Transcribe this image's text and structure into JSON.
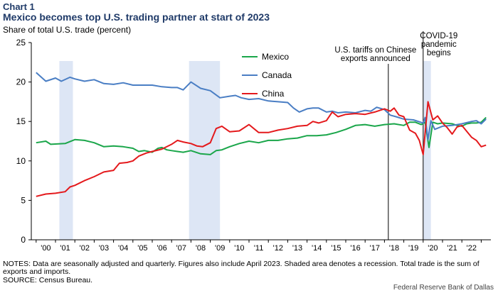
{
  "header": {
    "label": "Chart 1",
    "title": "Mexico becomes top U.S. trading partner at start of 2023"
  },
  "footer": {
    "notes": "NOTES: Data are seasonally adjusted and quarterly. Figures also include April 2023. Shaded area denotes a recession. Total trade is the sum of exports and imports.",
    "source": "SOURCE: Census Bureau.",
    "credit": "Federal Reserve Bank of Dallas"
  },
  "chart_data": {
    "type": "line",
    "title": "Mexico becomes top U.S. trading partner at start of 2023",
    "ylabel": "Share of total U.S. trade (percent)",
    "xlabel": "",
    "ylim": [
      0,
      25
    ],
    "yticks": [
      0,
      5,
      10,
      15,
      20,
      25
    ],
    "xlim": [
      1999.75,
      2023.5
    ],
    "xticks": [
      {
        "x": 2000.5,
        "label": "'00"
      },
      {
        "x": 2001.5,
        "label": "'01"
      },
      {
        "x": 2002.5,
        "label": "'02"
      },
      {
        "x": 2003.5,
        "label": "'03"
      },
      {
        "x": 2004.5,
        "label": "'04"
      },
      {
        "x": 2005.5,
        "label": "'05"
      },
      {
        "x": 2006.5,
        "label": "'06"
      },
      {
        "x": 2007.5,
        "label": "'07"
      },
      {
        "x": 2008.5,
        "label": "'08"
      },
      {
        "x": 2009.5,
        "label": "'09"
      },
      {
        "x": 2010.5,
        "label": "'10"
      },
      {
        "x": 2011.5,
        "label": "'11"
      },
      {
        "x": 2012.5,
        "label": "'12"
      },
      {
        "x": 2013.5,
        "label": "'13"
      },
      {
        "x": 2014.5,
        "label": "'14"
      },
      {
        "x": 2015.5,
        "label": "'15"
      },
      {
        "x": 2016.5,
        "label": "'16"
      },
      {
        "x": 2017.5,
        "label": "'17"
      },
      {
        "x": 2018.5,
        "label": "'18"
      },
      {
        "x": 2019.5,
        "label": "'19"
      },
      {
        "x": 2020.5,
        "label": "'20"
      },
      {
        "x": 2021.5,
        "label": "'21"
      },
      {
        "x": 2022.5,
        "label": "'22"
      }
    ],
    "grid": false,
    "legend": "top-middle",
    "recessions": [
      [
        2001.2,
        2001.9
      ],
      [
        2007.9,
        2009.5
      ],
      [
        2020.0,
        2020.4
      ]
    ],
    "annotations": [
      {
        "x": 2018.2,
        "text": [
          "U.S. tariffs on Chinese",
          "exports announced"
        ]
      },
      {
        "x": 2020.0,
        "text": [
          "COVID-19",
          "pandemic",
          "begins"
        ]
      }
    ],
    "series": [
      {
        "name": "Mexico",
        "color": "#1aa64a",
        "points": [
          [
            2000.0,
            12.3
          ],
          [
            2000.5,
            12.5
          ],
          [
            2000.75,
            12.1
          ],
          [
            2001.5,
            12.2
          ],
          [
            2002.0,
            12.7
          ],
          [
            2002.5,
            12.6
          ],
          [
            2003.0,
            12.3
          ],
          [
            2003.5,
            11.8
          ],
          [
            2004.0,
            11.9
          ],
          [
            2004.5,
            11.8
          ],
          [
            2005.0,
            11.6
          ],
          [
            2005.3,
            11.2
          ],
          [
            2005.6,
            11.3
          ],
          [
            2006.0,
            11.1
          ],
          [
            2006.3,
            11.6
          ],
          [
            2006.5,
            11.7
          ],
          [
            2006.75,
            11.4
          ],
          [
            2007.0,
            11.3
          ],
          [
            2007.3,
            11.2
          ],
          [
            2007.6,
            11.1
          ],
          [
            2008.0,
            11.3
          ],
          [
            2008.5,
            10.9
          ],
          [
            2009.0,
            10.8
          ],
          [
            2009.3,
            11.3
          ],
          [
            2009.6,
            11.4
          ],
          [
            2010.0,
            11.8
          ],
          [
            2010.5,
            12.2
          ],
          [
            2011.0,
            12.5
          ],
          [
            2011.5,
            12.3
          ],
          [
            2012.0,
            12.6
          ],
          [
            2012.5,
            12.6
          ],
          [
            2013.0,
            12.8
          ],
          [
            2013.5,
            12.9
          ],
          [
            2014.0,
            13.2
          ],
          [
            2014.5,
            13.2
          ],
          [
            2015.0,
            13.3
          ],
          [
            2015.5,
            13.6
          ],
          [
            2016.0,
            14.0
          ],
          [
            2016.5,
            14.5
          ],
          [
            2017.0,
            14.6
          ],
          [
            2017.5,
            14.4
          ],
          [
            2018.0,
            14.6
          ],
          [
            2018.5,
            14.7
          ],
          [
            2019.0,
            14.5
          ],
          [
            2019.3,
            14.9
          ],
          [
            2019.6,
            14.9
          ],
          [
            2019.9,
            14.6
          ],
          [
            2020.1,
            14.9
          ],
          [
            2020.3,
            11.7
          ],
          [
            2020.5,
            14.9
          ],
          [
            2020.75,
            14.7
          ],
          [
            2021.0,
            14.8
          ],
          [
            2021.5,
            14.7
          ],
          [
            2021.75,
            14.5
          ],
          [
            2022.0,
            14.4
          ],
          [
            2022.25,
            14.7
          ],
          [
            2022.5,
            14.8
          ],
          [
            2022.75,
            14.8
          ],
          [
            2023.0,
            14.9
          ],
          [
            2023.25,
            15.5
          ]
        ]
      },
      {
        "name": "Canada",
        "color": "#4a7ec4",
        "points": [
          [
            2000.0,
            21.2
          ],
          [
            2000.5,
            20.1
          ],
          [
            2001.0,
            20.5
          ],
          [
            2001.3,
            20.1
          ],
          [
            2001.75,
            20.6
          ],
          [
            2002.0,
            20.4
          ],
          [
            2002.5,
            20.1
          ],
          [
            2003.0,
            20.3
          ],
          [
            2003.5,
            19.8
          ],
          [
            2004.0,
            19.7
          ],
          [
            2004.5,
            19.9
          ],
          [
            2005.0,
            19.6
          ],
          [
            2005.5,
            19.6
          ],
          [
            2006.0,
            19.6
          ],
          [
            2006.5,
            19.4
          ],
          [
            2007.0,
            19.3
          ],
          [
            2007.3,
            19.3
          ],
          [
            2007.6,
            19.0
          ],
          [
            2008.0,
            20.0
          ],
          [
            2008.5,
            19.2
          ],
          [
            2009.0,
            18.9
          ],
          [
            2009.5,
            18.0
          ],
          [
            2010.0,
            18.2
          ],
          [
            2010.3,
            18.3
          ],
          [
            2010.6,
            18.0
          ],
          [
            2011.0,
            17.8
          ],
          [
            2011.5,
            17.9
          ],
          [
            2012.0,
            17.6
          ],
          [
            2012.5,
            17.5
          ],
          [
            2013.0,
            17.4
          ],
          [
            2013.3,
            16.7
          ],
          [
            2013.6,
            16.2
          ],
          [
            2014.0,
            16.6
          ],
          [
            2014.3,
            16.7
          ],
          [
            2014.6,
            16.7
          ],
          [
            2015.0,
            16.2
          ],
          [
            2015.3,
            16.3
          ],
          [
            2015.6,
            16.1
          ],
          [
            2016.0,
            16.2
          ],
          [
            2016.5,
            16.1
          ],
          [
            2017.0,
            16.4
          ],
          [
            2017.3,
            16.3
          ],
          [
            2017.6,
            16.8
          ],
          [
            2018.0,
            16.5
          ],
          [
            2018.3,
            15.8
          ],
          [
            2018.6,
            15.6
          ],
          [
            2019.0,
            15.3
          ],
          [
            2019.5,
            15.2
          ],
          [
            2020.0,
            14.8
          ],
          [
            2020.1,
            15.5
          ],
          [
            2020.25,
            12.7
          ],
          [
            2020.4,
            15.1
          ],
          [
            2020.6,
            14.0
          ],
          [
            2021.0,
            14.4
          ],
          [
            2021.5,
            14.5
          ],
          [
            2022.0,
            14.7
          ],
          [
            2022.5,
            15.0
          ],
          [
            2022.75,
            15.1
          ],
          [
            2023.0,
            14.7
          ],
          [
            2023.25,
            15.3
          ]
        ]
      },
      {
        "name": "China",
        "color": "#e4191c",
        "points": [
          [
            2000.0,
            5.5
          ],
          [
            2000.5,
            5.8
          ],
          [
            2001.0,
            5.9
          ],
          [
            2001.5,
            6.1
          ],
          [
            2001.75,
            6.7
          ],
          [
            2002.0,
            6.9
          ],
          [
            2002.5,
            7.5
          ],
          [
            2003.0,
            8.0
          ],
          [
            2003.5,
            8.6
          ],
          [
            2004.0,
            8.8
          ],
          [
            2004.3,
            9.7
          ],
          [
            2004.7,
            9.8
          ],
          [
            2005.0,
            10.0
          ],
          [
            2005.3,
            10.6
          ],
          [
            2005.7,
            11.0
          ],
          [
            2006.0,
            11.2
          ],
          [
            2006.5,
            11.5
          ],
          [
            2007.0,
            12.1
          ],
          [
            2007.3,
            12.6
          ],
          [
            2007.6,
            12.4
          ],
          [
            2008.0,
            12.2
          ],
          [
            2008.3,
            11.9
          ],
          [
            2008.6,
            11.8
          ],
          [
            2009.0,
            12.3
          ],
          [
            2009.3,
            14.1
          ],
          [
            2009.6,
            14.4
          ],
          [
            2010.0,
            13.7
          ],
          [
            2010.5,
            13.8
          ],
          [
            2011.0,
            14.6
          ],
          [
            2011.5,
            13.6
          ],
          [
            2012.0,
            13.6
          ],
          [
            2012.5,
            13.9
          ],
          [
            2013.0,
            14.1
          ],
          [
            2013.5,
            14.4
          ],
          [
            2014.0,
            14.5
          ],
          [
            2014.3,
            15.0
          ],
          [
            2014.6,
            14.8
          ],
          [
            2015.0,
            15.1
          ],
          [
            2015.3,
            16.2
          ],
          [
            2015.6,
            15.6
          ],
          [
            2016.0,
            15.9
          ],
          [
            2016.5,
            16.0
          ],
          [
            2017.0,
            15.9
          ],
          [
            2017.5,
            16.2
          ],
          [
            2018.0,
            16.6
          ],
          [
            2018.3,
            16.3
          ],
          [
            2018.5,
            16.7
          ],
          [
            2018.75,
            15.8
          ],
          [
            2019.0,
            15.6
          ],
          [
            2019.3,
            13.9
          ],
          [
            2019.6,
            13.5
          ],
          [
            2019.8,
            12.6
          ],
          [
            2020.0,
            10.8
          ],
          [
            2020.25,
            17.5
          ],
          [
            2020.5,
            15.2
          ],
          [
            2020.75,
            15.7
          ],
          [
            2021.0,
            14.8
          ],
          [
            2021.25,
            14.2
          ],
          [
            2021.5,
            13.4
          ],
          [
            2021.75,
            14.3
          ],
          [
            2022.0,
            14.5
          ],
          [
            2022.5,
            13.0
          ],
          [
            2022.75,
            12.6
          ],
          [
            2023.0,
            11.8
          ],
          [
            2023.25,
            12.0
          ]
        ]
      }
    ]
  }
}
